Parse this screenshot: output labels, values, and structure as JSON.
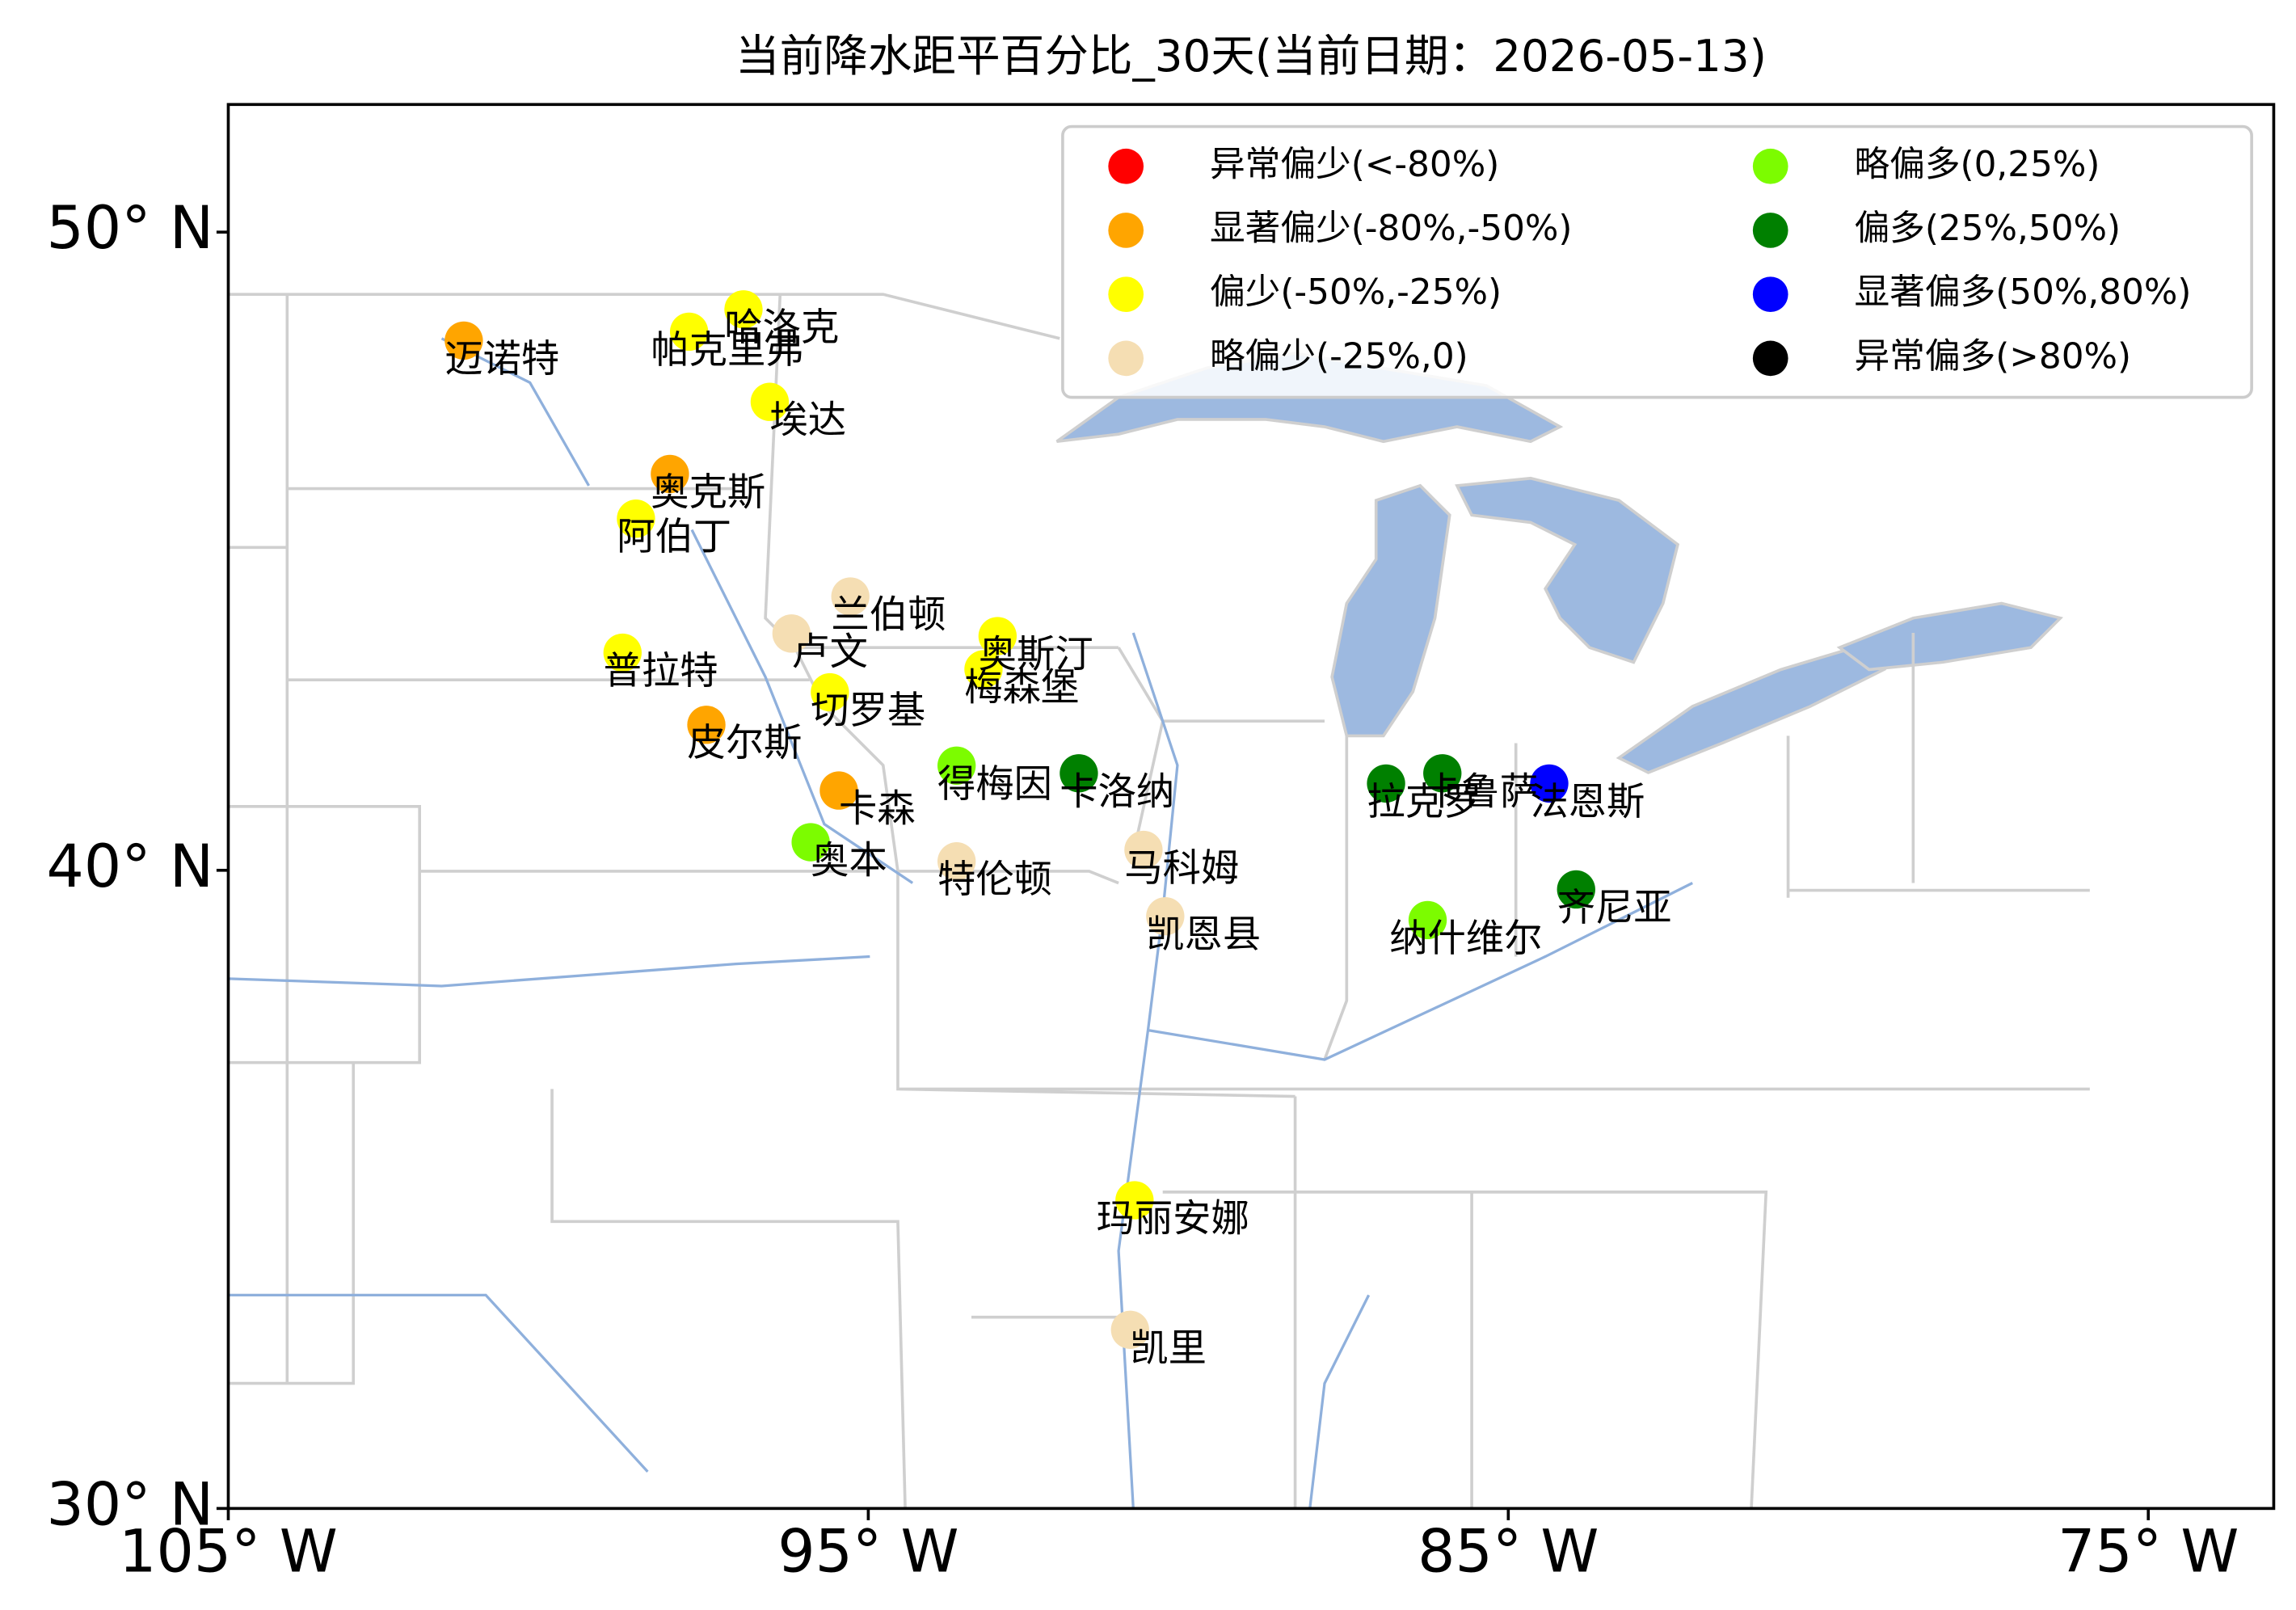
{
  "chart_data": {
    "type": "scatter",
    "title": "当前降水距平百分比_30天(当前日期：2026-05-13)",
    "xlim": [
      -105,
      -73.04
    ],
    "ylim": [
      30,
      52
    ],
    "xticks": [
      {
        "value": -105,
        "label": "105° W"
      },
      {
        "value": -95,
        "label": "95° W"
      },
      {
        "value": -85,
        "label": "85° W"
      },
      {
        "value": -75,
        "label": "75° W"
      }
    ],
    "yticks": [
      {
        "value": 30,
        "label": "30° N"
      },
      {
        "value": 40,
        "label": "40° N"
      },
      {
        "value": 50,
        "label": "50° N"
      }
    ],
    "legend": "upper right",
    "series": [
      {
        "name": "异常偏少(<-80%)",
        "color": "#ff0000",
        "labels": [],
        "x": [],
        "y": []
      },
      {
        "name": "显著偏少(-80%,-50%)",
        "color": "#ffa500",
        "labels": [
          "迈诺特",
          "奥克斯",
          "皮尔斯",
          "卡森"
        ],
        "x": [
          -101.32,
          -98.1,
          -97.53,
          -95.46
        ],
        "y": [
          48.3,
          46.21,
          42.28,
          41.25
        ]
      },
      {
        "name": "偏少(-50%,-25%)",
        "color": "#ffff00",
        "labels": [
          "哈洛克",
          "帕克里弗",
          "埃达",
          "阿伯丁",
          "奥斯汀",
          "梅森堡",
          "普拉特",
          "切罗基",
          "玛丽安娜"
        ],
        "x": [
          -96.95,
          -97.8,
          -96.54,
          -98.63,
          -92.98,
          -93.2,
          -98.84,
          -95.6,
          -90.84
        ],
        "y": [
          48.79,
          48.44,
          47.34,
          45.51,
          43.67,
          43.15,
          43.41,
          42.79,
          34.83
        ]
      },
      {
        "name": "略偏少(-25%,0)",
        "color": "#f5deb3",
        "labels": [
          "兰伯顿",
          "卢文",
          "特伦顿",
          "马科姆",
          "凯恩县",
          "凯里"
        ],
        "x": [
          -95.28,
          -96.2,
          -93.62,
          -90.7,
          -90.36,
          -90.91
        ],
        "y": [
          44.29,
          43.71,
          40.14,
          40.32,
          39.28,
          32.8
        ]
      },
      {
        "name": "略偏多(0,25%)",
        "color": "#7cfc00",
        "labels": [
          "得梅因",
          "奥本",
          "纳什维尔"
        ],
        "x": [
          -93.62,
          -95.9,
          -86.26
        ],
        "y": [
          41.64,
          40.44,
          39.22
        ]
      },
      {
        "name": "偏多(25%,50%)",
        "color": "#008000",
        "labels": [
          "卡洛纳",
          "拉克罗",
          "卡鲁萨",
          "齐尼亚"
        ],
        "x": [
          -91.71,
          -86.91,
          -86.03,
          -83.94
        ],
        "y": [
          41.52,
          41.36,
          41.52,
          39.7
        ]
      },
      {
        "name": "显著偏多(50%,80%)",
        "color": "#0000ff",
        "labels": [
          "法恩斯"
        ],
        "x": [
          -84.36
        ],
        "y": [
          41.36
        ]
      },
      {
        "name": "异常偏多(>80%)",
        "color": "#000000",
        "labels": [],
        "x": [],
        "y": []
      }
    ]
  }
}
